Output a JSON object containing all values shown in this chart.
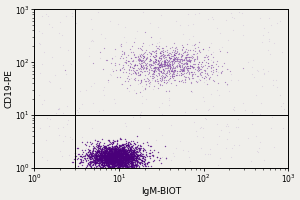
{
  "title": "",
  "xlabel": "IgM-BIOT",
  "ylabel": "CD19-PE",
  "xlim_log": [
    0,
    3
  ],
  "ylim_log": [
    0,
    3
  ],
  "background_color": "#f0efeb",
  "dot_color_dense": "#4a007a",
  "dot_color_mid": "#7a40a0",
  "dot_color_sparse": "#b090cc",
  "gate_x_log": 0.48,
  "gate_y_log": 1.0,
  "cluster1_x_log_mean": 0.95,
  "cluster1_y_log_mean": 0.2,
  "cluster1_x_log_std": 0.16,
  "cluster1_y_log_std": 0.12,
  "cluster1_n": 3000,
  "cluster2_x_log_mean": 1.55,
  "cluster2_y_log_mean": 1.95,
  "cluster2_x_log_std": 0.28,
  "cluster2_y_log_std": 0.18,
  "cluster2_n": 1000,
  "sparse_n": 350,
  "label_fontsize": 6.5,
  "tick_fontsize": 5.5
}
